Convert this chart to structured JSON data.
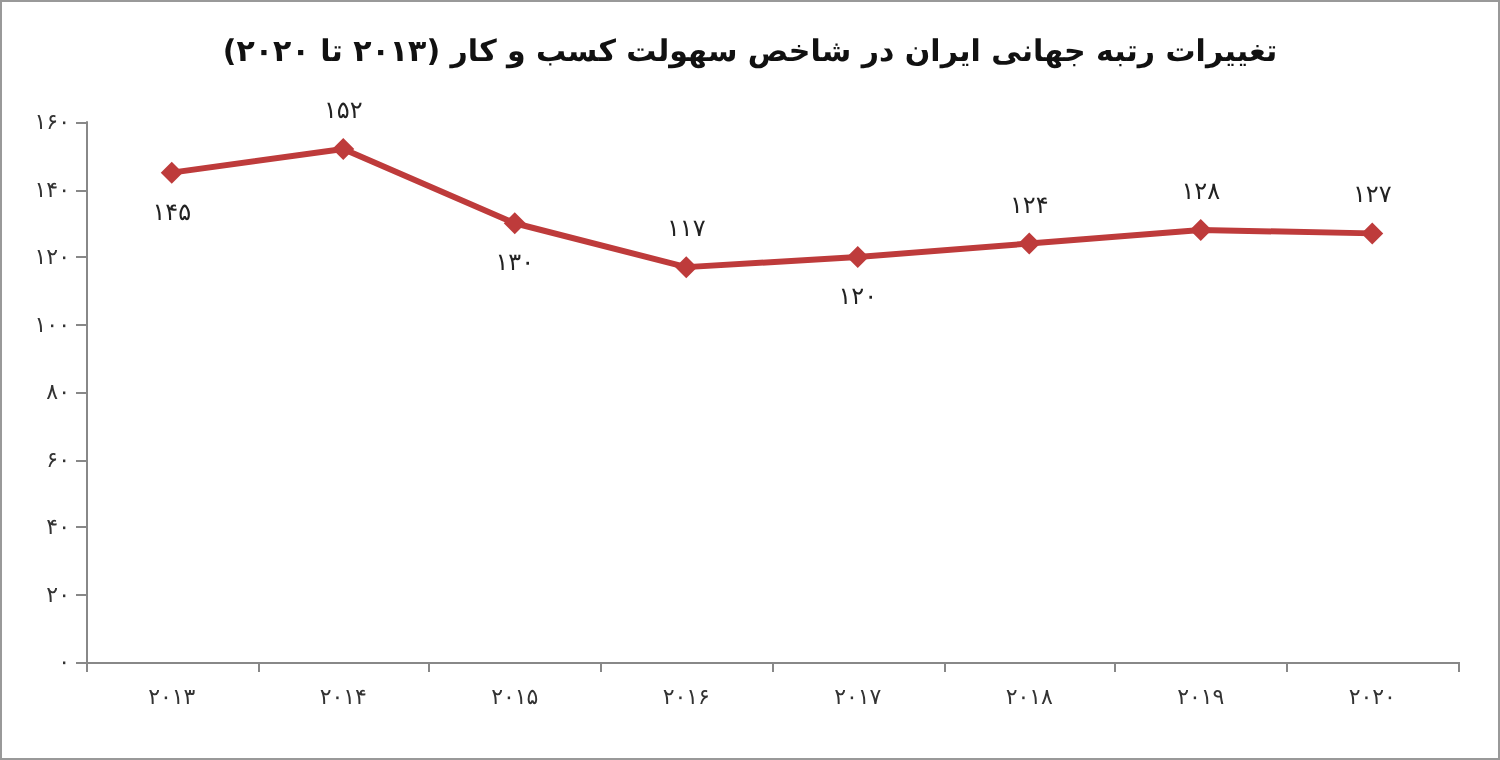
{
  "chart_data": {
    "type": "line",
    "title": "تغییرات رتبه جهانی ایران در شاخص سهولت کسب و کار (۲۰۱۳ تا ۲۰۲۰)",
    "categories": [
      "۲۰۱۳",
      "۲۰۱۴",
      "۲۰۱۵",
      "۲۰۱۶",
      "۲۰۱۷",
      "۲۰۱۸",
      "۲۰۱۹",
      "۲۰۲۰"
    ],
    "series": [
      {
        "color": "#be3b3b",
        "values": [
          145,
          152,
          130,
          117,
          120,
          124,
          128,
          127
        ],
        "value_labels": [
          "۱۴۵",
          "۱۵۲",
          "۱۳۰",
          "۱۱۷",
          "۱۲۰",
          "۱۲۴",
          "۱۲۸",
          "۱۲۷"
        ]
      }
    ],
    "ylim": [
      0,
      160
    ],
    "yticks": [
      {
        "value": 0,
        "label": "۰"
      },
      {
        "value": 20,
        "label": "۲۰"
      },
      {
        "value": 40,
        "label": "۴۰"
      },
      {
        "value": 60,
        "label": "۶۰"
      },
      {
        "value": 80,
        "label": "۸۰"
      },
      {
        "value": 100,
        "label": "۱۰۰"
      },
      {
        "value": 120,
        "label": "۱۲۰"
      },
      {
        "value": 140,
        "label": "۱۴۰"
      },
      {
        "value": 160,
        "label": "۱۶۰"
      }
    ],
    "grid": false,
    "marker": "diamond",
    "line_style": "solid"
  }
}
